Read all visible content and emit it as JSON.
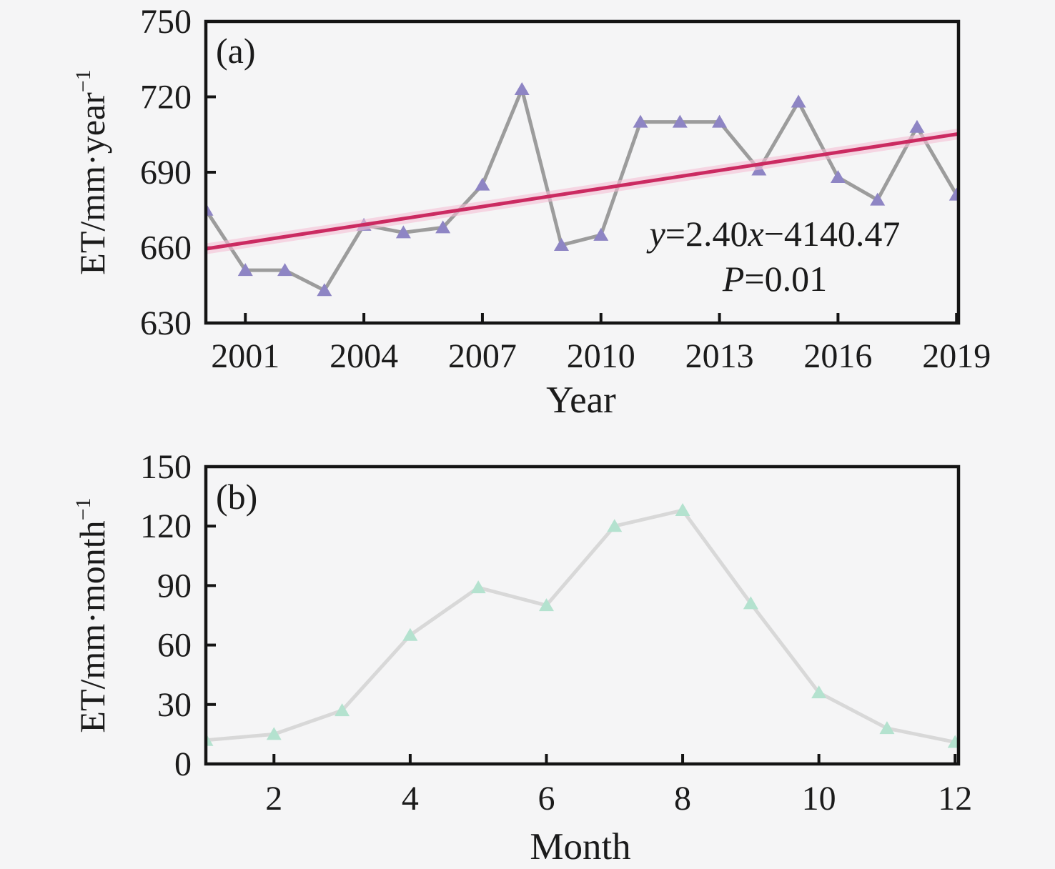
{
  "figure": {
    "background": "#f5f5f6",
    "text_color": "#1b1b1b",
    "axis_color": "#141414"
  },
  "chart_data": [
    {
      "id": "a",
      "type": "line",
      "panel_label": "(a)",
      "xlabel": "Year",
      "ylabel": "ET/mm·year",
      "ylabel_superscript": "−1",
      "x": [
        2000,
        2001,
        2002,
        2003,
        2004,
        2005,
        2006,
        2007,
        2008,
        2009,
        2010,
        2011,
        2012,
        2013,
        2014,
        2015,
        2016,
        2017,
        2018,
        2019
      ],
      "values": [
        675,
        651,
        651,
        643,
        669,
        666,
        668,
        685,
        723,
        661,
        665,
        710,
        710,
        710,
        691,
        718,
        688,
        679,
        708,
        681
      ],
      "xlim": [
        2000,
        2019.05
      ],
      "ylim": [
        630,
        750
      ],
      "xticks": [
        2001,
        2004,
        2007,
        2010,
        2013,
        2016,
        2019
      ],
      "yticks": [
        630,
        660,
        690,
        720,
        750
      ],
      "grid": false,
      "legend": null,
      "line_color": "#9c9c9c",
      "marker": "triangle-up",
      "marker_color": "#8e85c4",
      "trend": {
        "equation_text": "y=2.40x−4140.47",
        "p_text": "P=0.01",
        "slope": 2.4,
        "intercept": -4140.47,
        "color": "#cb2a61",
        "band_color": "#f5c0d5"
      },
      "annotation_lines": [
        [
          {
            "t": "y",
            "italic": true
          },
          {
            "t": "=2.40",
            "italic": false
          },
          {
            "t": "x",
            "italic": true
          },
          {
            "t": "−4140.47",
            "italic": false
          }
        ],
        [
          {
            "t": "P",
            "italic": true
          },
          {
            "t": "=0.01",
            "italic": false
          }
        ]
      ]
    },
    {
      "id": "b",
      "type": "line",
      "panel_label": "(b)",
      "xlabel": "Month",
      "ylabel": "ET/mm·month",
      "ylabel_superscript": "−1",
      "x": [
        1,
        2,
        3,
        4,
        5,
        6,
        7,
        8,
        9,
        10,
        11,
        12
      ],
      "values": [
        12,
        15,
        27,
        65,
        89,
        80,
        120,
        128,
        81,
        36,
        18,
        11
      ],
      "xlim": [
        1,
        12.05
      ],
      "ylim": [
        0,
        150
      ],
      "xticks": [
        2,
        4,
        6,
        8,
        10,
        12
      ],
      "yticks": [
        0,
        30,
        60,
        90,
        120,
        150
      ],
      "grid": false,
      "legend": null,
      "line_color": "#d8d8d8",
      "marker": "triangle-up",
      "marker_color": "#b4e2cf",
      "trend": null,
      "annotation_lines": []
    }
  ]
}
